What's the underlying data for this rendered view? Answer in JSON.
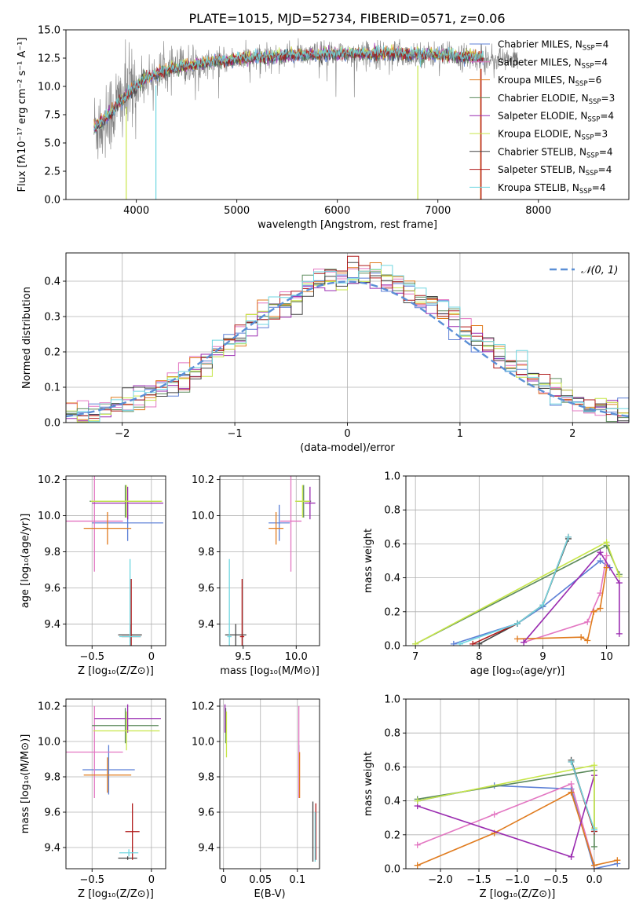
{
  "figure": {
    "title": "PLATE=1015, MJD=52734, FIBERID=0571, z=0.06"
  },
  "colors": {
    "Chabrier MILES": "#5b7fd6",
    "Salpeter MILES": "#e377c2",
    "Kroupa MILES": "#e07b1e",
    "Chabrier ELODIE": "#5c8a5c",
    "Salpeter ELODIE": "#9a2bb0",
    "Kroupa ELODIE": "#c7e64a",
    "Chabrier STELIB": "#444444",
    "Salpeter STELIB": "#b01a1a",
    "Kroupa STELIB": "#6fd6e0",
    "data": "#7f7f7f",
    "normal": "#5b8fd6"
  },
  "chart_data": [
    {
      "id": "spectrum",
      "type": "line",
      "xlabel": "wavelength [Angstrom, rest frame]",
      "ylabel": "Flux [fλ10⁻¹⁷ erg cm⁻² s⁻¹ A⁻¹]",
      "xlim": [
        3300,
        8900
      ],
      "ylim": [
        0,
        15
      ],
      "xticks": [
        4000,
        5000,
        6000,
        7000,
        8000
      ],
      "yticks": [
        0.0,
        2.5,
        5.0,
        7.5,
        10.0,
        12.5,
        15.0
      ],
      "grid": false,
      "legend_position": "right",
      "legend": [
        "Chabrier MILES, N_SSP=4",
        "Salpeter MILES, N_SSP=4",
        "Kroupa MILES, N_SSP=6",
        "Chabrier ELODIE, N_SSP=3",
        "Salpeter ELODIE, N_SSP=4",
        "Kroupa ELODIE, N_SSP=3",
        "Chabrier STELIB, N_SSP=4",
        "Salpeter STELIB, N_SSP=4",
        "Kroupa STELIB, N_SSP=4"
      ],
      "continuum": {
        "x": [
          3580,
          3700,
          3800,
          3900,
          4000,
          4100,
          4300,
          4500,
          4800,
          5000,
          5300,
          5600,
          6000,
          6500,
          7000,
          7500,
          7800
        ],
        "y": [
          6.3,
          7.2,
          8.3,
          9.2,
          10.0,
          10.8,
          11.4,
          11.8,
          12.2,
          12.4,
          12.6,
          12.8,
          12.9,
          12.9,
          12.8,
          12.5,
          12.3
        ]
      },
      "model_range": [
        3580,
        7450
      ]
    },
    {
      "id": "residuals",
      "type": "histogram",
      "xlabel": "(data-model)/error",
      "ylabel": "Normed distribution",
      "xlim": [
        -2.5,
        2.5
      ],
      "ylim": [
        0,
        0.48
      ],
      "xticks": [
        -2,
        -1,
        0,
        1,
        2
      ],
      "yticks": [
        0.0,
        0.1,
        0.2,
        0.3,
        0.4
      ],
      "grid": true,
      "legend_position": "top-right",
      "legend": [
        "𝒩(0, 1)"
      ],
      "bin_width": 0.1,
      "bins_start": -2.5
    },
    {
      "id": "age-vs-Z",
      "type": "errorbar",
      "xlabel": "Z [log₁₀(Z/Z⊙)]",
      "ylabel": "age  [log₁₀(age/yr)]",
      "xlim": [
        -0.72,
        0.12
      ],
      "ylim": [
        9.28,
        10.22
      ],
      "xticks": [
        -0.5,
        0.0
      ],
      "yticks": [
        9.4,
        9.6,
        9.8,
        10.0,
        10.2
      ],
      "grid": true,
      "points": [
        {
          "model": "Chabrier MILES",
          "x": -0.2,
          "y": 9.96,
          "xerr": 0.3,
          "yerr": 0.1
        },
        {
          "model": "Salpeter MILES",
          "x": -0.48,
          "y": 9.97,
          "xerr": 0.24,
          "yerr": 0.28
        },
        {
          "model": "Kroupa MILES",
          "x": -0.37,
          "y": 9.93,
          "xerr": 0.2,
          "yerr": 0.09
        },
        {
          "model": "Chabrier ELODIE",
          "x": -0.22,
          "y": 10.08,
          "xerr": 0.3,
          "yerr": 0.09
        },
        {
          "model": "Salpeter ELODIE",
          "x": -0.2,
          "y": 10.07,
          "xerr": 0.3,
          "yerr": 0.09
        },
        {
          "model": "Kroupa ELODIE",
          "x": -0.21,
          "y": 10.08,
          "xerr": 0.3,
          "yerr": 0.09
        },
        {
          "model": "Chabrier STELIB",
          "x": -0.18,
          "y": 9.34,
          "xerr": 0.1,
          "yerr": 0.06
        },
        {
          "model": "Salpeter STELIB",
          "x": -0.17,
          "y": 9.33,
          "xerr": 0.08,
          "yerr": 0.32
        },
        {
          "model": "Kroupa STELIB",
          "x": -0.18,
          "y": 9.33,
          "xerr": 0.09,
          "yerr": 0.43
        }
      ]
    },
    {
      "id": "age-vs-mass",
      "type": "errorbar",
      "xlabel": "mass [log₁₀(M/M⊙)]",
      "ylabel": "",
      "xlim": [
        9.28,
        10.22
      ],
      "ylim": [
        9.28,
        10.22
      ],
      "xticks": [
        9.5,
        10.0
      ],
      "yticks": [
        9.4,
        9.6,
        9.8,
        10.0,
        10.2
      ],
      "grid": true,
      "points": [
        {
          "model": "Chabrier MILES",
          "x": 9.84,
          "y": 9.96,
          "xerr": 0.1,
          "yerr": 0.1
        },
        {
          "model": "Salpeter MILES",
          "x": 9.95,
          "y": 9.97,
          "xerr": 0.1,
          "yerr": 0.28
        },
        {
          "model": "Kroupa MILES",
          "x": 9.81,
          "y": 9.93,
          "xerr": 0.07,
          "yerr": 0.09
        },
        {
          "model": "Chabrier ELODIE",
          "x": 10.07,
          "y": 10.08,
          "xerr": 0.07,
          "yerr": 0.09
        },
        {
          "model": "Salpeter ELODIE",
          "x": 10.13,
          "y": 10.07,
          "xerr": 0.05,
          "yerr": 0.09
        },
        {
          "model": "Kroupa ELODIE",
          "x": 10.06,
          "y": 10.08,
          "xerr": 0.07,
          "yerr": 0.09
        },
        {
          "model": "Chabrier STELIB",
          "x": 9.43,
          "y": 9.34,
          "xerr": 0.1,
          "yerr": 0.06
        },
        {
          "model": "Salpeter STELIB",
          "x": 9.49,
          "y": 9.33,
          "xerr": 0.02,
          "yerr": 0.32
        },
        {
          "model": "Kroupa STELIB",
          "x": 9.37,
          "y": 9.33,
          "xerr": 0.02,
          "yerr": 0.43
        }
      ]
    },
    {
      "id": "weight-vs-age",
      "type": "line",
      "xlabel": "age  [log₁₀(age/yr)]",
      "ylabel": "mass weight",
      "xlim": [
        6.85,
        10.35
      ],
      "ylim": [
        0,
        1.0
      ],
      "xticks": [
        7,
        8,
        9,
        10
      ],
      "yticks": [
        0.0,
        0.2,
        0.4,
        0.6,
        0.8,
        1.0
      ],
      "grid": true,
      "series": [
        {
          "model": "Chabrier MILES",
          "x": [
            7.6,
            8.6,
            9.0,
            9.9,
            10.05
          ],
          "y": [
            0.01,
            0.13,
            0.23,
            0.5,
            0.46
          ]
        },
        {
          "model": "Salpeter MILES",
          "x": [
            8.7,
            9.7,
            9.9,
            10.0
          ],
          "y": [
            0.02,
            0.14,
            0.31,
            0.53
          ]
        },
        {
          "model": "Kroupa MILES",
          "x": [
            8.6,
            9.6,
            9.7,
            9.8,
            9.9,
            10.0
          ],
          "y": [
            0.04,
            0.05,
            0.03,
            0.2,
            0.22,
            0.46
          ]
        },
        {
          "model": "Chabrier ELODIE",
          "x": [
            7.0,
            10.0,
            10.2
          ],
          "y": [
            0.01,
            0.59,
            0.42
          ]
        },
        {
          "model": "Salpeter ELODIE",
          "x": [
            8.7,
            9.9,
            10.2,
            10.2
          ],
          "y": [
            0.02,
            0.55,
            0.37,
            0.07
          ]
        },
        {
          "model": "Kroupa ELODIE",
          "x": [
            7.0,
            10.0,
            10.2
          ],
          "y": [
            0.01,
            0.61,
            0.41
          ]
        },
        {
          "model": "Chabrier STELIB",
          "x": [
            8.0,
            8.6,
            9.0,
            9.4
          ],
          "y": [
            0.01,
            0.13,
            0.24,
            0.63
          ]
        },
        {
          "model": "Salpeter STELIB",
          "x": [
            7.9,
            8.6,
            9.0,
            9.4
          ],
          "y": [
            0.01,
            0.13,
            0.24,
            0.64
          ]
        },
        {
          "model": "Kroupa STELIB",
          "x": [
            7.7,
            8.6,
            9.0,
            9.4
          ],
          "y": [
            0.01,
            0.13,
            0.24,
            0.64
          ]
        }
      ]
    },
    {
      "id": "mass-vs-Z",
      "type": "errorbar",
      "xlabel": "Z [log₁₀(Z/Z⊙)]",
      "ylabel": "mass [log₁₀(M/M⊙)]",
      "xlim": [
        -0.72,
        0.12
      ],
      "ylim": [
        9.28,
        10.24
      ],
      "xticks": [
        -0.5,
        0.0
      ],
      "yticks": [
        9.4,
        9.6,
        9.8,
        10.0,
        10.2
      ],
      "grid": true,
      "points": [
        {
          "model": "Chabrier MILES",
          "x": -0.36,
          "y": 9.84,
          "xerr": 0.22,
          "yerr": 0.14
        },
        {
          "model": "Salpeter MILES",
          "x": -0.48,
          "y": 9.94,
          "xerr": 0.24,
          "yerr": 0.26
        },
        {
          "model": "Kroupa MILES",
          "x": -0.37,
          "y": 9.81,
          "xerr": 0.2,
          "yerr": 0.1
        },
        {
          "model": "Chabrier ELODIE",
          "x": -0.22,
          "y": 10.09,
          "xerr": 0.28,
          "yerr": 0.1
        },
        {
          "model": "Salpeter ELODIE",
          "x": -0.2,
          "y": 10.13,
          "xerr": 0.28,
          "yerr": 0.08
        },
        {
          "model": "Kroupa ELODIE",
          "x": -0.21,
          "y": 10.06,
          "xerr": 0.28,
          "yerr": 0.11
        },
        {
          "model": "Chabrier STELIB",
          "x": -0.2,
          "y": 9.34,
          "xerr": 0.08,
          "yerr": 0.01
        },
        {
          "model": "Salpeter STELIB",
          "x": -0.16,
          "y": 9.49,
          "xerr": 0.06,
          "yerr": 0.16
        },
        {
          "model": "Kroupa STELIB",
          "x": -0.19,
          "y": 9.37,
          "xerr": 0.08,
          "yerr": 0.02
        }
      ]
    },
    {
      "id": "mass-vs-EBV",
      "type": "errorbar",
      "xlabel": "E(B-V)",
      "ylabel": "",
      "xlim": [
        -0.005,
        0.13
      ],
      "ylim": [
        9.28,
        10.24
      ],
      "xticks": [
        0.0,
        0.05,
        0.1
      ],
      "yticks": [
        9.4,
        9.6,
        9.8,
        10.0,
        10.2
      ],
      "grid": true,
      "points": [
        {
          "model": "Chabrier MILES",
          "x": 0.102,
          "y": 9.84,
          "xerr": 0,
          "yerr": 0.14
        },
        {
          "model": "Salpeter MILES",
          "x": 0.102,
          "y": 9.94,
          "xerr": 0,
          "yerr": 0.26
        },
        {
          "model": "Kroupa MILES",
          "x": 0.103,
          "y": 9.81,
          "xerr": 0,
          "yerr": 0.13
        },
        {
          "model": "Chabrier ELODIE",
          "x": 0.003,
          "y": 10.09,
          "xerr": 0,
          "yerr": 0.1
        },
        {
          "model": "Salpeter ELODIE",
          "x": 0.002,
          "y": 10.13,
          "xerr": 0,
          "yerr": 0.08
        },
        {
          "model": "Kroupa ELODIE",
          "x": 0.004,
          "y": 10.04,
          "xerr": 0,
          "yerr": 0.13
        },
        {
          "model": "Chabrier STELIB",
          "x": 0.121,
          "y": 9.49,
          "xerr": 0,
          "yerr": 0.17
        },
        {
          "model": "Salpeter STELIB",
          "x": 0.125,
          "y": 9.49,
          "xerr": 0,
          "yerr": 0.16
        },
        {
          "model": "Kroupa STELIB",
          "x": 0.124,
          "y": 9.46,
          "xerr": 0,
          "yerr": 0.14
        }
      ]
    },
    {
      "id": "weight-vs-Z",
      "type": "line",
      "xlabel": "Z [log₁₀(Z/Z⊙)]",
      "ylabel": "mass weight",
      "xlim": [
        -2.45,
        0.45
      ],
      "ylim": [
        0,
        1.0
      ],
      "xticks": [
        -2.0,
        -1.5,
        -1.0,
        -0.5,
        0.0
      ],
      "yticks": [
        0.0,
        0.2,
        0.4,
        0.6,
        0.8,
        1.0
      ],
      "grid": true,
      "series": [
        {
          "model": "Chabrier MILES",
          "x": [
            -2.3,
            -1.3,
            -0.3,
            0.0,
            0.3
          ],
          "y": [
            0.4,
            0.49,
            0.47,
            0.0,
            0.03
          ]
        },
        {
          "model": "Salpeter MILES",
          "x": [
            -2.3,
            -1.3,
            -0.3,
            0.0
          ],
          "y": [
            0.14,
            0.32,
            0.5,
            0.02
          ]
        },
        {
          "model": "Kroupa MILES",
          "x": [
            -2.3,
            -1.3,
            -0.3,
            0.0,
            0.3
          ],
          "y": [
            0.02,
            0.21,
            0.45,
            0.02,
            0.05
          ]
        },
        {
          "model": "Chabrier ELODIE",
          "x": [
            -2.3,
            0.0,
            0.0
          ],
          "y": [
            0.41,
            0.58,
            0.13
          ]
        },
        {
          "model": "Salpeter ELODIE",
          "x": [
            -2.3,
            -0.3,
            0.0
          ],
          "y": [
            0.37,
            0.07,
            0.55
          ]
        },
        {
          "model": "Kroupa ELODIE",
          "x": [
            -2.3,
            0.0,
            0.0
          ],
          "y": [
            0.4,
            0.61,
            0.24
          ]
        },
        {
          "model": "Chabrier STELIB",
          "x": [
            -0.3,
            0.0
          ],
          "y": [
            0.64,
            0.22
          ]
        },
        {
          "model": "Salpeter STELIB",
          "x": [
            -0.3,
            0.0
          ],
          "y": [
            0.63,
            0.22
          ]
        },
        {
          "model": "Kroupa STELIB",
          "x": [
            -0.3,
            0.0
          ],
          "y": [
            0.63,
            0.23
          ]
        }
      ]
    }
  ]
}
